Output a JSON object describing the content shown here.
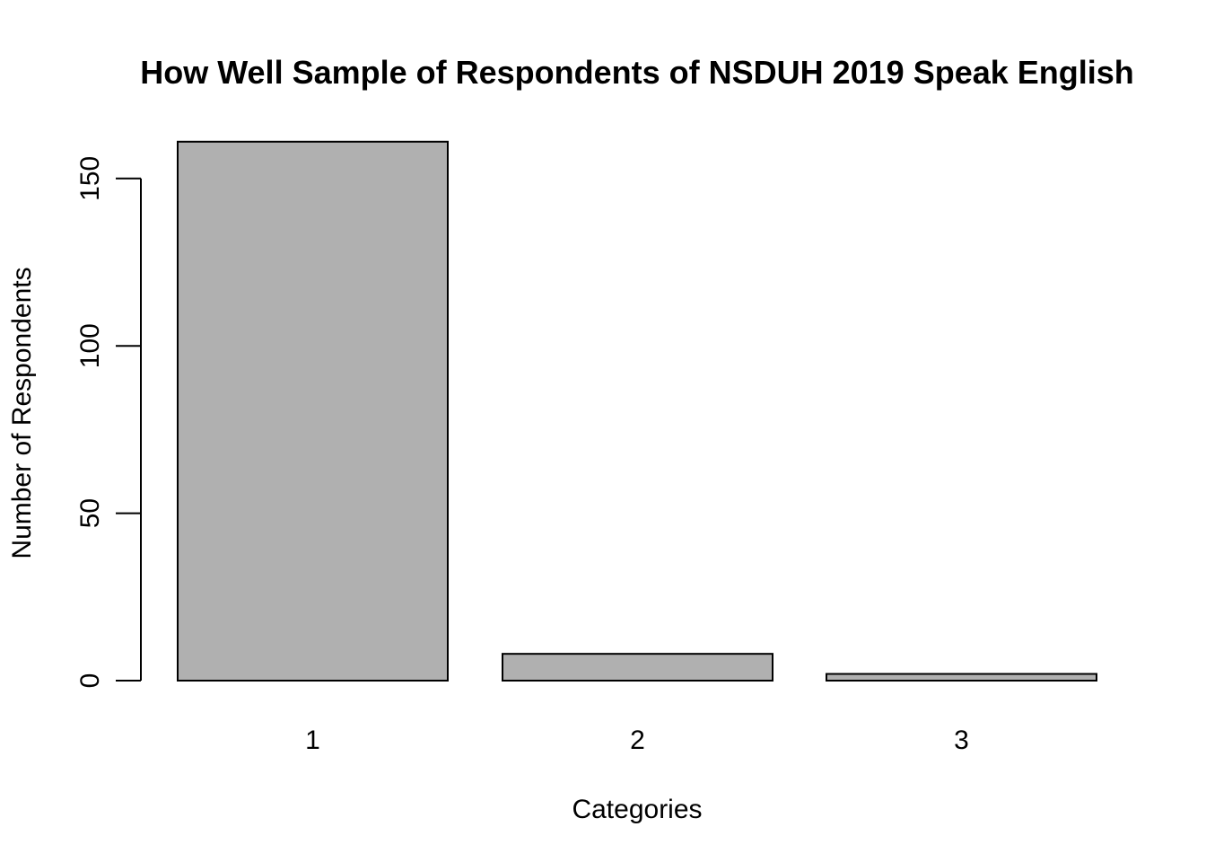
{
  "chart_data": {
    "type": "bar",
    "title": "How Well Sample of Respondents of NSDUH 2019 Speak English",
    "xlabel": "Categories",
    "ylabel": "Number of Respondents",
    "categories": [
      "1",
      "2",
      "3"
    ],
    "values": [
      161,
      8,
      2
    ],
    "yticks": [
      0,
      50,
      100,
      150
    ],
    "ylim": [
      0,
      161
    ],
    "grid": false,
    "legend": "none",
    "colors": {
      "bar_fill": "#b0b0b0",
      "bar_stroke": "#000000",
      "background": "#ffffff"
    }
  }
}
